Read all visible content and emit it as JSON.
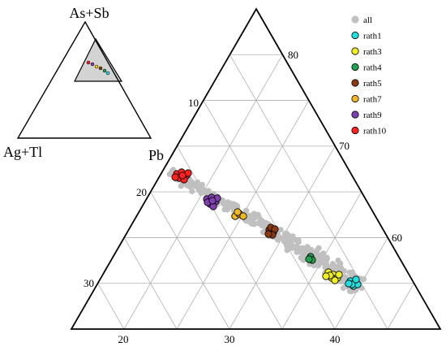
{
  "chart_data": [
    {
      "type": "scatter",
      "subtype": "ternary-overview",
      "vertex_labels": {
        "top": "As+Sb",
        "left": "Ag+Tl",
        "right": "Pb"
      },
      "zoom_region": {
        "fill": "#d3d3d3"
      },
      "markers": [
        "#ff2020",
        "#8040b0",
        "#ffd000",
        "#8b3a10",
        "#20a050",
        "#20e0e0"
      ]
    },
    {
      "type": "scatter",
      "subtype": "ternary-zoom",
      "left_axis_ticks": [
        "20",
        "30",
        "40"
      ],
      "top_edge_ticks": [
        "10",
        "20",
        "30"
      ],
      "right_edge_ticks": [
        "80",
        "70",
        "60"
      ],
      "grid": true,
      "legend_position": "top-right",
      "series": [
        {
          "name": "all",
          "color": "#c0c0c0",
          "border": "#c0c0c0"
        },
        {
          "name": "rath1",
          "color": "#20e0e0",
          "border": "#000000"
        },
        {
          "name": "rath3",
          "color": "#f0f020",
          "border": "#000000"
        },
        {
          "name": "rath4",
          "color": "#20a050",
          "border": "#000000"
        },
        {
          "name": "rath5",
          "color": "#8b3a10",
          "border": "#000000"
        },
        {
          "name": "rath7",
          "color": "#f0b820",
          "border": "#000000"
        },
        {
          "name": "rath9",
          "color": "#8040b0",
          "border": "#000000"
        },
        {
          "name": "rath10",
          "color": "#ff2020",
          "border": "#000000"
        }
      ]
    }
  ]
}
